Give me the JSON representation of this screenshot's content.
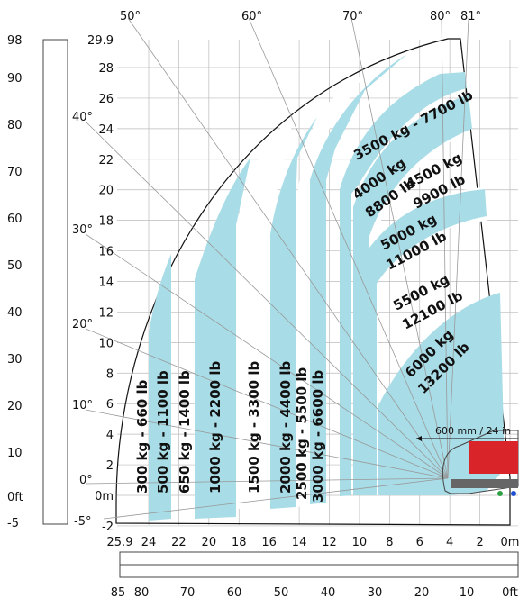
{
  "chart_data": {
    "type": "load_chart",
    "title": "",
    "meter_axis_y_ticks": [
      "29.9",
      "28",
      "26",
      "24",
      "22",
      "20",
      "18",
      "16",
      "14",
      "12",
      "10",
      "8",
      "6",
      "4",
      "2",
      "0m",
      "-2"
    ],
    "meter_axis_x_ticks": [
      "25.9",
      "24",
      "22",
      "20",
      "18",
      "16",
      "14",
      "12",
      "10",
      "8",
      "6",
      "4",
      "2",
      "0m"
    ],
    "feet_axis_y_ticks": [
      "98",
      "90",
      "80",
      "70",
      "60",
      "50",
      "40",
      "30",
      "20",
      "10",
      "0ft",
      "-5"
    ],
    "feet_axis_x_ticks": [
      "85",
      "80",
      "70",
      "60",
      "50",
      "40",
      "30",
      "20",
      "10",
      "0ft"
    ],
    "angle_labels": [
      "50°",
      "60°",
      "70°",
      "80°",
      "81°",
      "40°",
      "30°",
      "20°",
      "10°",
      "0°",
      "-5°"
    ],
    "load_zones": [
      {
        "label": "300 kg - 660 lb"
      },
      {
        "label": "500 kg - 1100 lb"
      },
      {
        "label": "650 kg - 1400 lb"
      },
      {
        "label": "1000 kg - 2200 lb"
      },
      {
        "label": "1500 kg - 3300 lb"
      },
      {
        "label": "2000 kg - 4400 lb"
      },
      {
        "label": "2500 kg - 5500 lb"
      },
      {
        "label": "3000 kg - 6600 lb"
      },
      {
        "label": "3500 kg - 7700 lb"
      },
      {
        "label_kg": "4000 kg",
        "label_lb": "8800 lb"
      },
      {
        "label_kg": "4500 kg",
        "label_lb": "9900 lb"
      },
      {
        "label_kg": "5000 kg",
        "label_lb": "11000 lb"
      },
      {
        "label_kg": "5500 kg",
        "label_lb": "12100 lb"
      },
      {
        "label_kg": "6000 kg",
        "label_lb": "13200 lb"
      }
    ],
    "fork_note": "600 mm / 24 in",
    "colors": {
      "zone": "#a8dce6",
      "machine": "#d9252a",
      "outline": "#111111"
    }
  }
}
